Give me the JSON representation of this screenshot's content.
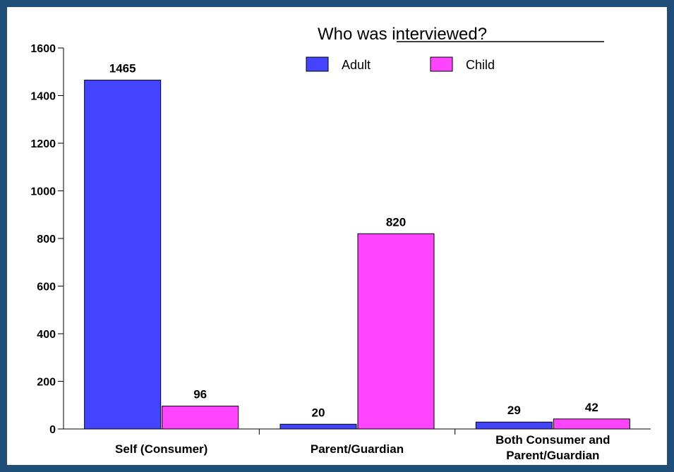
{
  "chart_data": {
    "type": "bar",
    "title": "Who was interviewed?",
    "categories": [
      [
        "Self (Consumer)"
      ],
      [
        "Parent/Guardian"
      ],
      [
        "Both Consumer and",
        "Parent/Guardian"
      ]
    ],
    "series": [
      {
        "name": "Adult",
        "color": "#4444ff",
        "values": [
          1465,
          20,
          29
        ]
      },
      {
        "name": "Child",
        "color": "#ff44ff",
        "values": [
          96,
          820,
          42
        ]
      }
    ],
    "yticks": [
      0,
      200,
      400,
      600,
      800,
      1000,
      1200,
      1400,
      1600
    ],
    "ylim": [
      0,
      1600
    ],
    "legend": "top-right",
    "grid": false
  }
}
